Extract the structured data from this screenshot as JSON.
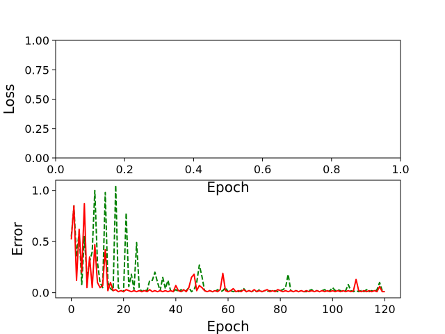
{
  "chart_data": [
    {
      "type": "line",
      "xlabel": "Epoch",
      "ylabel": "Loss",
      "xlim": [
        0.0,
        1.0
      ],
      "ylim": [
        0.0,
        1.0
      ],
      "xticks": [
        "0.0",
        "0.2",
        "0.4",
        "0.6",
        "0.8",
        "1.0"
      ],
      "yticks": [
        "0.00",
        "0.25",
        "0.50",
        "0.75",
        "1.00"
      ],
      "series": []
    },
    {
      "type": "line",
      "xlabel": "Epoch",
      "ylabel": "Error",
      "xlim": [
        -6,
        126
      ],
      "ylim": [
        -0.05,
        1.1
      ],
      "xticks": [
        "0",
        "20",
        "40",
        "60",
        "80",
        "100",
        "120"
      ],
      "yticks": [
        "0.0",
        "0.5",
        "1.0"
      ],
      "series": [
        {
          "color": "#008000",
          "style": "dashed",
          "x": [
            0,
            1,
            2,
            3,
            4,
            5,
            6,
            7,
            8,
            9,
            10,
            11,
            12,
            13,
            14,
            15,
            16,
            17,
            18,
            19,
            20,
            21,
            22,
            23,
            24,
            25,
            26,
            27,
            28,
            29,
            30,
            31,
            32,
            33,
            34,
            35,
            36,
            37,
            38,
            39,
            40,
            41,
            42,
            43,
            44,
            45,
            46,
            47,
            48,
            49,
            50,
            51,
            52,
            53,
            54,
            55,
            56,
            57,
            58,
            59,
            60,
            61,
            62,
            63,
            64,
            65,
            66,
            67,
            68,
            69,
            70,
            71,
            72,
            73,
            74,
            75,
            76,
            77,
            78,
            79,
            80,
            81,
            82,
            83,
            84,
            85,
            86,
            87,
            88,
            89,
            90,
            91,
            92,
            93,
            94,
            95,
            96,
            97,
            98,
            99,
            100,
            101,
            102,
            103,
            104,
            105,
            106,
            107,
            108,
            109,
            110,
            111,
            112,
            113,
            114,
            115,
            116,
            117,
            118,
            119,
            120
          ],
          "values": [
            0.55,
            0.85,
            0.35,
            0.6,
            0.08,
            0.55,
            0.15,
            0.3,
            0.4,
            1.0,
            0.3,
            0.1,
            0.05,
            0.98,
            0.1,
            0.04,
            0.02,
            1.05,
            0.05,
            0.02,
            0.01,
            0.78,
            0.06,
            0.18,
            0.03,
            0.49,
            0.05,
            0.01,
            0.03,
            0.02,
            0.12,
            0.12,
            0.2,
            0.1,
            0.02,
            0.15,
            0.04,
            0.12,
            0.02,
            0.01,
            0.03,
            0.01,
            0.03,
            0.01,
            0.02,
            0.05,
            0.01,
            0.03,
            0.1,
            0.27,
            0.16,
            0.02,
            0.01,
            0.02,
            0.01,
            0.01,
            0.03,
            0.01,
            0.02,
            0.05,
            0.01,
            0.02,
            0.01,
            0.02,
            0.01,
            0.02,
            0.04,
            0.01,
            0.02,
            0.01,
            0.02,
            0.01,
            0.03,
            0.01,
            0.02,
            0.01,
            0.02,
            0.01,
            0.02,
            0.01,
            0.02,
            0.03,
            0.05,
            0.18,
            0.02,
            0.01,
            0.02,
            0.01,
            0.02,
            0.01,
            0.01,
            0.02,
            0.03,
            0.01,
            0.02,
            0.01,
            0.02,
            0.03,
            0.01,
            0.02,
            0.05,
            0.02,
            0.03,
            0.02,
            0.01,
            0.02,
            0.08,
            0.02,
            0.01,
            0.02,
            0.01,
            0.02,
            0.01,
            0.03,
            0.01,
            0.02,
            0.01,
            0.03,
            0.1,
            0.02,
            0.01
          ]
        },
        {
          "color": "#ff0000",
          "style": "solid",
          "x": [
            0,
            1,
            2,
            3,
            4,
            5,
            6,
            7,
            8,
            9,
            10,
            11,
            12,
            13,
            14,
            15,
            16,
            17,
            18,
            19,
            20,
            21,
            22,
            23,
            24,
            25,
            26,
            27,
            28,
            29,
            30,
            31,
            32,
            33,
            34,
            35,
            36,
            37,
            38,
            39,
            40,
            41,
            42,
            43,
            44,
            45,
            46,
            47,
            48,
            49,
            50,
            51,
            52,
            53,
            54,
            55,
            56,
            57,
            58,
            59,
            60,
            61,
            62,
            63,
            64,
            65,
            66,
            67,
            68,
            69,
            70,
            71,
            72,
            73,
            74,
            75,
            76,
            77,
            78,
            79,
            80,
            81,
            82,
            83,
            84,
            85,
            86,
            87,
            88,
            89,
            90,
            91,
            92,
            93,
            94,
            95,
            96,
            97,
            98,
            99,
            100,
            101,
            102,
            103,
            104,
            105,
            106,
            107,
            108,
            109,
            110,
            111,
            112,
            113,
            114,
            115,
            116,
            117,
            118,
            119,
            120
          ],
          "values": [
            0.52,
            0.85,
            0.12,
            0.62,
            0.2,
            0.87,
            0.05,
            0.35,
            0.05,
            0.47,
            0.1,
            0.05,
            0.07,
            0.42,
            0.02,
            0.1,
            0.02,
            0.03,
            0.01,
            0.02,
            0.01,
            0.03,
            0.02,
            0.01,
            0.02,
            0.01,
            0.02,
            0.01,
            0.02,
            0.01,
            0.03,
            0.01,
            0.02,
            0.01,
            0.02,
            0.01,
            0.02,
            0.01,
            0.02,
            0.01,
            0.07,
            0.02,
            0.01,
            0.03,
            0.01,
            0.05,
            0.15,
            0.18,
            0.02,
            0.07,
            0.05,
            0.02,
            0.01,
            0.02,
            0.01,
            0.02,
            0.01,
            0.03,
            0.19,
            0.02,
            0.01,
            0.02,
            0.04,
            0.01,
            0.02,
            0.01,
            0.03,
            0.01,
            0.02,
            0.01,
            0.03,
            0.01,
            0.02,
            0.01,
            0.02,
            0.03,
            0.01,
            0.02,
            0.01,
            0.03,
            0.02,
            0.01,
            0.02,
            0.01,
            0.02,
            0.01,
            0.02,
            0.01,
            0.02,
            0.01,
            0.02,
            0.01,
            0.02,
            0.01,
            0.02,
            0.01,
            0.02,
            0.01,
            0.02,
            0.01,
            0.02,
            0.01,
            0.02,
            0.01,
            0.02,
            0.01,
            0.02,
            0.01,
            0.02,
            0.13,
            0.02,
            0.01,
            0.02,
            0.01,
            0.02,
            0.01,
            0.02,
            0.01,
            0.06,
            0.01,
            0.01
          ]
        }
      ]
    }
  ]
}
